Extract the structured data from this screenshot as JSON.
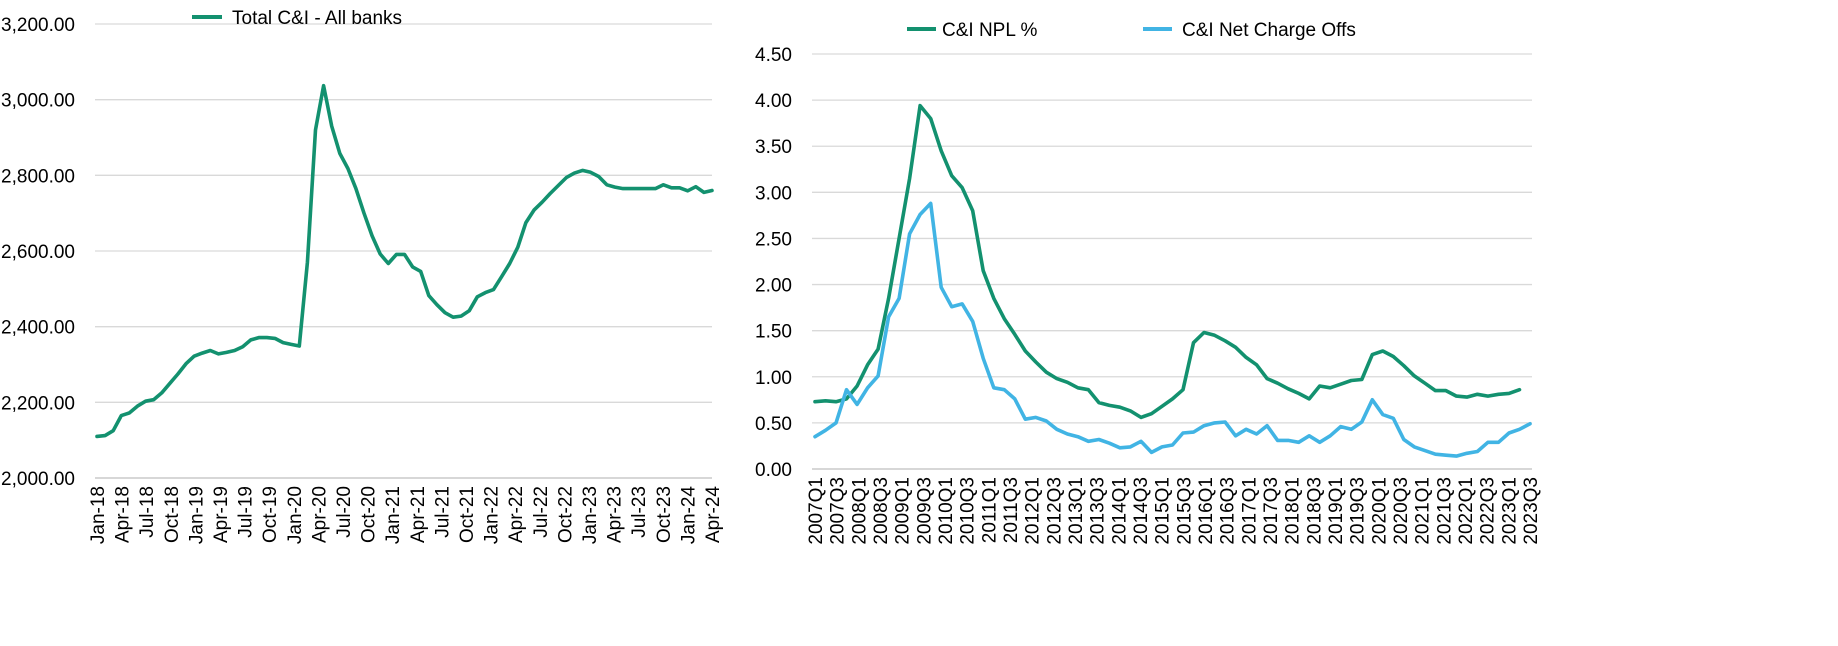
{
  "chart_data": [
    {
      "type": "line",
      "title": "",
      "xlabel": "",
      "ylabel": "",
      "ylim": [
        2000,
        3200
      ],
      "yticks": [
        "2,000.00",
        "2,200.00",
        "2,400.00",
        "2,600.00",
        "2,800.00",
        "3,000.00",
        "3,200.00"
      ],
      "xticks": [
        "Jan-18",
        "Apr-18",
        "Jul-18",
        "Oct-18",
        "Jan-19",
        "Apr-19",
        "Jul-19",
        "Oct-19",
        "Jan-20",
        "Apr-20",
        "Jul-20",
        "Oct-20",
        "Jan-21",
        "Apr-21",
        "Jul-21",
        "Oct-21",
        "Jan-22",
        "Apr-22",
        "Jul-22",
        "Oct-22",
        "Jan-23",
        "Apr-23",
        "Jul-23",
        "Oct-23",
        "Jan-24",
        "Apr-24"
      ],
      "grid": true,
      "legend": "top-left",
      "series": [
        {
          "name": "Total C&I - All banks",
          "color": "#13916f",
          "values": [
            2110,
            2112,
            2125,
            2165,
            2172,
            2190,
            2203,
            2207,
            2225,
            2250,
            2275,
            2302,
            2322,
            2330,
            2337,
            2328,
            2332,
            2337,
            2347,
            2365,
            2371,
            2371,
            2369,
            2358,
            2353,
            2349,
            2570,
            2920,
            3037,
            2930,
            2858,
            2818,
            2765,
            2700,
            2640,
            2592,
            2567,
            2591,
            2591,
            2558,
            2546,
            2482,
            2458,
            2437,
            2425,
            2428,
            2442,
            2479,
            2490,
            2498,
            2532,
            2567,
            2610,
            2675,
            2708,
            2729,
            2752,
            2773,
            2794,
            2806,
            2813,
            2808,
            2797,
            2775,
            2769,
            2765,
            2765,
            2765,
            2765,
            2765,
            2775,
            2767,
            2767,
            2759,
            2770,
            2755,
            2760
          ]
        }
      ]
    },
    {
      "type": "line",
      "title": "",
      "xlabel": "",
      "ylabel": "",
      "ylim": [
        0,
        4.5
      ],
      "yticks": [
        "0.00",
        "0.50",
        "1.00",
        "1.50",
        "2.00",
        "2.50",
        "3.00",
        "3.50",
        "4.00",
        "4.50"
      ],
      "xticks": [
        "2007Q1",
        "2007Q3",
        "2008Q1",
        "2008Q3",
        "2009Q1",
        "2009Q3",
        "2010Q1",
        "2010Q3",
        "2011Q1",
        "2011Q3",
        "2012Q1",
        "2012Q3",
        "2013Q1",
        "2013Q3",
        "2014Q1",
        "2014Q3",
        "2015Q1",
        "2015Q3",
        "2016Q1",
        "2016Q3",
        "2017Q1",
        "2017Q3",
        "2018Q1",
        "2018Q3",
        "2019Q1",
        "2019Q3",
        "2020Q1",
        "2020Q3",
        "2021Q1",
        "2021Q3",
        "2022Q1",
        "2022Q3",
        "2023Q1",
        "2023Q3"
      ],
      "grid": true,
      "legend": "top",
      "series": [
        {
          "name": "C&I NPL %",
          "color": "#13916f",
          "values": [
            0.73,
            0.74,
            0.73,
            0.76,
            0.9,
            1.13,
            1.3,
            1.85,
            2.5,
            3.15,
            3.94,
            3.8,
            3.45,
            3.18,
            3.05,
            2.8,
            2.15,
            1.85,
            1.63,
            1.46,
            1.28,
            1.16,
            1.05,
            0.98,
            0.94,
            0.88,
            0.86,
            0.72,
            0.69,
            0.67,
            0.63,
            0.56,
            0.6,
            0.68,
            0.76,
            0.86,
            1.37,
            1.48,
            1.45,
            1.39,
            1.32,
            1.21,
            1.13,
            0.98,
            0.93,
            0.87,
            0.82,
            0.76,
            0.9,
            0.88,
            0.92,
            0.96,
            0.97,
            1.24,
            1.28,
            1.22,
            1.12,
            1.01,
            0.93,
            0.85,
            0.85,
            0.79,
            0.78,
            0.81,
            0.79,
            0.81,
            0.82,
            0.86
          ]
        },
        {
          "name": "C&I Net Charge Offs",
          "color": "#41b4e4",
          "values": [
            0.35,
            0.42,
            0.5,
            0.86,
            0.7,
            0.88,
            1.01,
            1.65,
            1.85,
            2.55,
            2.76,
            2.88,
            1.97,
            1.76,
            1.79,
            1.6,
            1.2,
            0.88,
            0.86,
            0.76,
            0.54,
            0.56,
            0.52,
            0.43,
            0.38,
            0.35,
            0.3,
            0.32,
            0.28,
            0.23,
            0.24,
            0.3,
            0.18,
            0.24,
            0.26,
            0.39,
            0.4,
            0.47,
            0.5,
            0.51,
            0.36,
            0.43,
            0.38,
            0.47,
            0.31,
            0.31,
            0.29,
            0.36,
            0.29,
            0.36,
            0.46,
            0.43,
            0.51,
            0.75,
            0.59,
            0.55,
            0.32,
            0.24,
            0.2,
            0.16,
            0.15,
            0.14,
            0.17,
            0.19,
            0.29,
            0.29,
            0.39,
            0.43,
            0.49
          ]
        }
      ]
    }
  ]
}
